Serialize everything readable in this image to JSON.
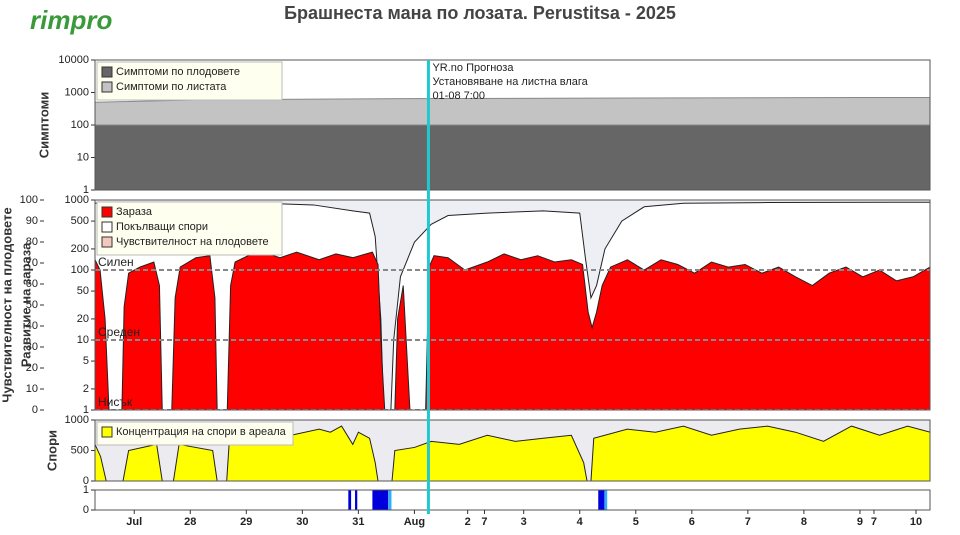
{
  "header": {
    "logo": "rimpro",
    "title": "Брашнеста мана по лозата.  Perustitsa - 2025"
  },
  "x_axis": {
    "xlim": [
      0,
      14.9
    ],
    "xticks": [
      {
        "value": 0.7,
        "label": "Jul"
      },
      {
        "value": 1.7,
        "label": "28"
      },
      {
        "value": 2.7,
        "label": "29"
      },
      {
        "value": 3.7,
        "label": "30"
      },
      {
        "value": 4.7,
        "label": "31"
      },
      {
        "value": 5.7,
        "label": "Aug"
      },
      {
        "value": 6.65,
        "label": "2"
      },
      {
        "value": 6.95,
        "label": "7"
      },
      {
        "value": 7.65,
        "label": "3"
      },
      {
        "value": 8.65,
        "label": "4"
      },
      {
        "value": 9.65,
        "label": "5"
      },
      {
        "value": 10.65,
        "label": "6"
      },
      {
        "value": 11.65,
        "label": "7"
      },
      {
        "value": 12.65,
        "label": "8"
      },
      {
        "value": 13.65,
        "label": "9"
      },
      {
        "value": 13.9,
        "label": "7"
      },
      {
        "value": 14.65,
        "label": "10"
      }
    ]
  },
  "forecast": {
    "x": 5.95,
    "color": "#22c8d0",
    "labels": [
      "YR.no Прогноза",
      "Установяване на листна влага",
      "01-08 7:00"
    ]
  },
  "chart_data": [
    {
      "type": "area",
      "ylabel": "Симптоми",
      "ylim": [
        1,
        10000
      ],
      "ylog": true,
      "yticks": [
        1,
        10,
        100,
        1000,
        10000
      ],
      "legend": "top-left",
      "series": [
        {
          "name": "Симптоми по листата",
          "color": "#c3c3c3",
          "x": [
            0,
            2.0,
            5.5,
            13.6,
            14.9
          ],
          "values": [
            500,
            600,
            650,
            700,
            700
          ]
        },
        {
          "name": "Симптоми по плодовете",
          "color": "#666666",
          "x": [
            0,
            14.9
          ],
          "values": [
            100,
            100
          ]
        }
      ]
    },
    {
      "type": "area",
      "ylabel": "Чувствителност на плодовете",
      "y2label": "Развитие на зараза",
      "ylim": [
        0,
        100
      ],
      "yticks": [
        0,
        10,
        20,
        30,
        40,
        50,
        60,
        70,
        80,
        90,
        100
      ],
      "y2lim": [
        1,
        1000
      ],
      "y2log": true,
      "y2ticks": [
        1,
        2,
        5,
        10,
        20,
        50,
        100,
        200,
        500,
        1000
      ],
      "legend": "top-left",
      "levels": [
        {
          "value": 1,
          "label": "Нисък"
        },
        {
          "value": 10,
          "label": "Среден"
        },
        {
          "value": 100,
          "label": "Силен"
        }
      ],
      "series": [
        {
          "name": "Покълващи спори",
          "color": "#ffffff",
          "axis": "y2",
          "x": [
            0,
            1.0,
            2.0,
            3.0,
            3.9,
            4.6,
            4.9,
            5.0,
            5.1,
            5.15,
            5.28,
            5.33,
            5.45,
            5.7,
            6.0,
            6.3,
            7.0,
            8.0,
            8.65,
            8.75,
            8.85,
            8.95,
            9.1,
            9.4,
            9.8,
            10.5,
            12,
            14.9
          ],
          "values": [
            900,
            880,
            920,
            900,
            850,
            700,
            650,
            300,
            20,
            1,
            1,
            10,
            80,
            250,
            450,
            600,
            650,
            700,
            650,
            150,
            40,
            60,
            200,
            500,
            800,
            900,
            920,
            930
          ]
        },
        {
          "name": "Зараза",
          "color": "#ff0000",
          "axis": "y2",
          "x": [
            0,
            0.09,
            0.18,
            0.25,
            0.48,
            0.52,
            0.6,
            0.8,
            1.05,
            1.15,
            1.2,
            1.37,
            1.43,
            1.52,
            1.8,
            2.05,
            2.14,
            2.18,
            2.36,
            2.42,
            2.5,
            2.8,
            3.0,
            3.3,
            3.6,
            4.0,
            4.3,
            4.6,
            4.95,
            5.05,
            5.12,
            5.17,
            5.35,
            5.4,
            5.5,
            5.62,
            5.9,
            5.96,
            6.05,
            6.3,
            6.6,
            7.0,
            7.3,
            7.6,
            7.9,
            8.2,
            8.5,
            8.7,
            8.8,
            8.87,
            8.95,
            9.05,
            9.2,
            9.5,
            9.8,
            10.1,
            10.4,
            10.7,
            11.0,
            11.3,
            11.6,
            11.9,
            12.2,
            12.5,
            12.8,
            13.1,
            13.4,
            13.7,
            14.0,
            14.3,
            14.6,
            14.9
          ],
          "values": [
            140,
            100,
            20,
            1,
            1,
            30,
            90,
            110,
            130,
            60,
            1,
            1,
            40,
            110,
            150,
            160,
            40,
            1,
            1,
            60,
            130,
            170,
            180,
            150,
            180,
            140,
            170,
            150,
            180,
            120,
            5,
            1,
            1,
            20,
            60,
            1,
            1,
            110,
            160,
            150,
            100,
            130,
            170,
            140,
            160,
            130,
            140,
            120,
            25,
            15,
            25,
            60,
            110,
            140,
            100,
            140,
            120,
            90,
            130,
            110,
            120,
            90,
            110,
            80,
            60,
            90,
            110,
            80,
            100,
            70,
            80,
            110
          ]
        },
        {
          "name": "Чувствителност на плодовете",
          "color": "#f4c8c0"
        }
      ]
    },
    {
      "type": "area",
      "ylabel": "Спори",
      "ylim": [
        0,
        1000
      ],
      "yticks": [
        0,
        500,
        1000
      ],
      "legend": "top-left",
      "series": [
        {
          "name": "Концентрация на спори в ареала",
          "color": "#ffff00",
          "x": [
            0,
            0.1,
            0.2,
            0.5,
            0.6,
            1.1,
            1.2,
            1.4,
            1.5,
            2.1,
            2.18,
            2.35,
            2.4,
            3.0,
            3.5,
            4.0,
            4.2,
            4.4,
            4.6,
            4.7,
            4.9,
            5.0,
            5.05,
            5.3,
            5.35,
            5.7,
            6.0,
            6.5,
            7.0,
            7.5,
            8.0,
            8.5,
            8.72,
            8.78,
            8.85,
            8.9,
            9.5,
            10,
            10.5,
            11,
            11.5,
            12,
            12.5,
            13,
            13.5,
            14,
            14.5,
            14.9
          ],
          "values": [
            600,
            400,
            0,
            0,
            500,
            600,
            0,
            0,
            600,
            500,
            0,
            0,
            700,
            800,
            750,
            850,
            800,
            900,
            600,
            800,
            700,
            300,
            0,
            0,
            500,
            550,
            650,
            600,
            750,
            650,
            700,
            750,
            300,
            0,
            0,
            700,
            850,
            800,
            900,
            750,
            850,
            900,
            800,
            650,
            900,
            750,
            900,
            800
          ]
        }
      ]
    },
    {
      "type": "bar",
      "ylim": [
        0,
        1
      ],
      "yticks": [
        0,
        1
      ],
      "series": [
        {
          "color": "#0000dd",
          "x": [
            4.52,
            4.64,
            4.95,
            8.98
          ],
          "x_end": [
            4.57,
            4.68,
            5.23,
            9.09
          ],
          "values": [
            1,
            1,
            1,
            1
          ]
        },
        {
          "color": "#33aaff",
          "x": [
            5.23,
            9.09
          ],
          "x_end": [
            5.29,
            9.14
          ],
          "values": [
            1,
            1
          ]
        }
      ]
    }
  ]
}
